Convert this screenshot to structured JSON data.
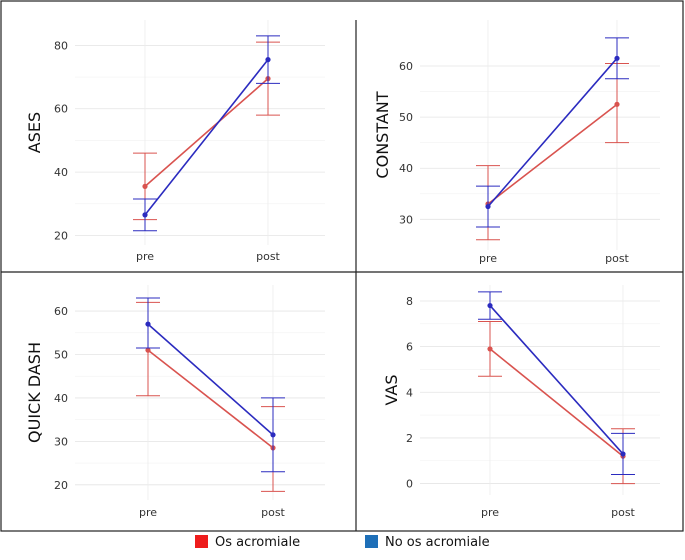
{
  "chart_data": [
    {
      "type": "line",
      "ylabel": "ASES",
      "categories": [
        "pre",
        "post"
      ],
      "yticks": [
        20,
        40,
        60,
        80
      ],
      "ylim": [
        17,
        88
      ],
      "series": [
        {
          "name": "Os acromiale",
          "color": "#d9534f",
          "values": [
            35.5,
            69.5
          ],
          "err_low": [
            25,
            58
          ],
          "err_high": [
            46,
            81
          ]
        },
        {
          "name": "No os acromiale",
          "color": "#2b2bbf",
          "values": [
            26.5,
            75.5
          ],
          "err_low": [
            21.5,
            68
          ],
          "err_high": [
            31.5,
            83
          ]
        }
      ]
    },
    {
      "type": "line",
      "ylabel": "CONSTANT",
      "categories": [
        "pre",
        "post"
      ],
      "yticks": [
        30,
        40,
        50,
        60
      ],
      "ylim": [
        24,
        69
      ],
      "series": [
        {
          "name": "Os acromiale",
          "color": "#d9534f",
          "values": [
            33,
            52.5
          ],
          "err_low": [
            26,
            45
          ],
          "err_high": [
            40.5,
            60.5
          ]
        },
        {
          "name": "No os acromiale",
          "color": "#2b2bbf",
          "values": [
            32.5,
            61.5
          ],
          "err_low": [
            28.5,
            57.5
          ],
          "err_high": [
            36.5,
            65.5
          ]
        }
      ]
    },
    {
      "type": "line",
      "ylabel": "QUICK DASH",
      "categories": [
        "pre",
        "post"
      ],
      "yticks": [
        20,
        30,
        40,
        50,
        60
      ],
      "ylim": [
        16.5,
        66
      ],
      "series": [
        {
          "name": "Os acromiale",
          "color": "#d9534f",
          "values": [
            51,
            28.5
          ],
          "err_low": [
            40.5,
            18.5
          ],
          "err_high": [
            62,
            38
          ]
        },
        {
          "name": "No os acromiale",
          "color": "#2b2bbf",
          "values": [
            57,
            31.5
          ],
          "err_low": [
            51.5,
            23
          ],
          "err_high": [
            63,
            40
          ]
        }
      ]
    },
    {
      "type": "line",
      "ylabel": "VAS",
      "categories": [
        "pre",
        "post"
      ],
      "yticks": [
        0,
        2,
        4,
        6,
        8
      ],
      "ylim": [
        -0.5,
        8.7
      ],
      "series": [
        {
          "name": "Os acromiale",
          "color": "#d9534f",
          "values": [
            5.9,
            1.2
          ],
          "err_low": [
            4.7,
            0
          ],
          "err_high": [
            7.1,
            2.4
          ]
        },
        {
          "name": "No os acromiale",
          "color": "#2b2bbf",
          "values": [
            7.8,
            1.3
          ],
          "err_low": [
            7.2,
            0.4
          ],
          "err_high": [
            8.4,
            2.2
          ]
        }
      ]
    }
  ],
  "legend": {
    "items": [
      {
        "label": "Os acromiale",
        "color": "#ee1c1c"
      },
      {
        "label": "No os acromiale",
        "color": "#1e6fb8"
      }
    ]
  }
}
